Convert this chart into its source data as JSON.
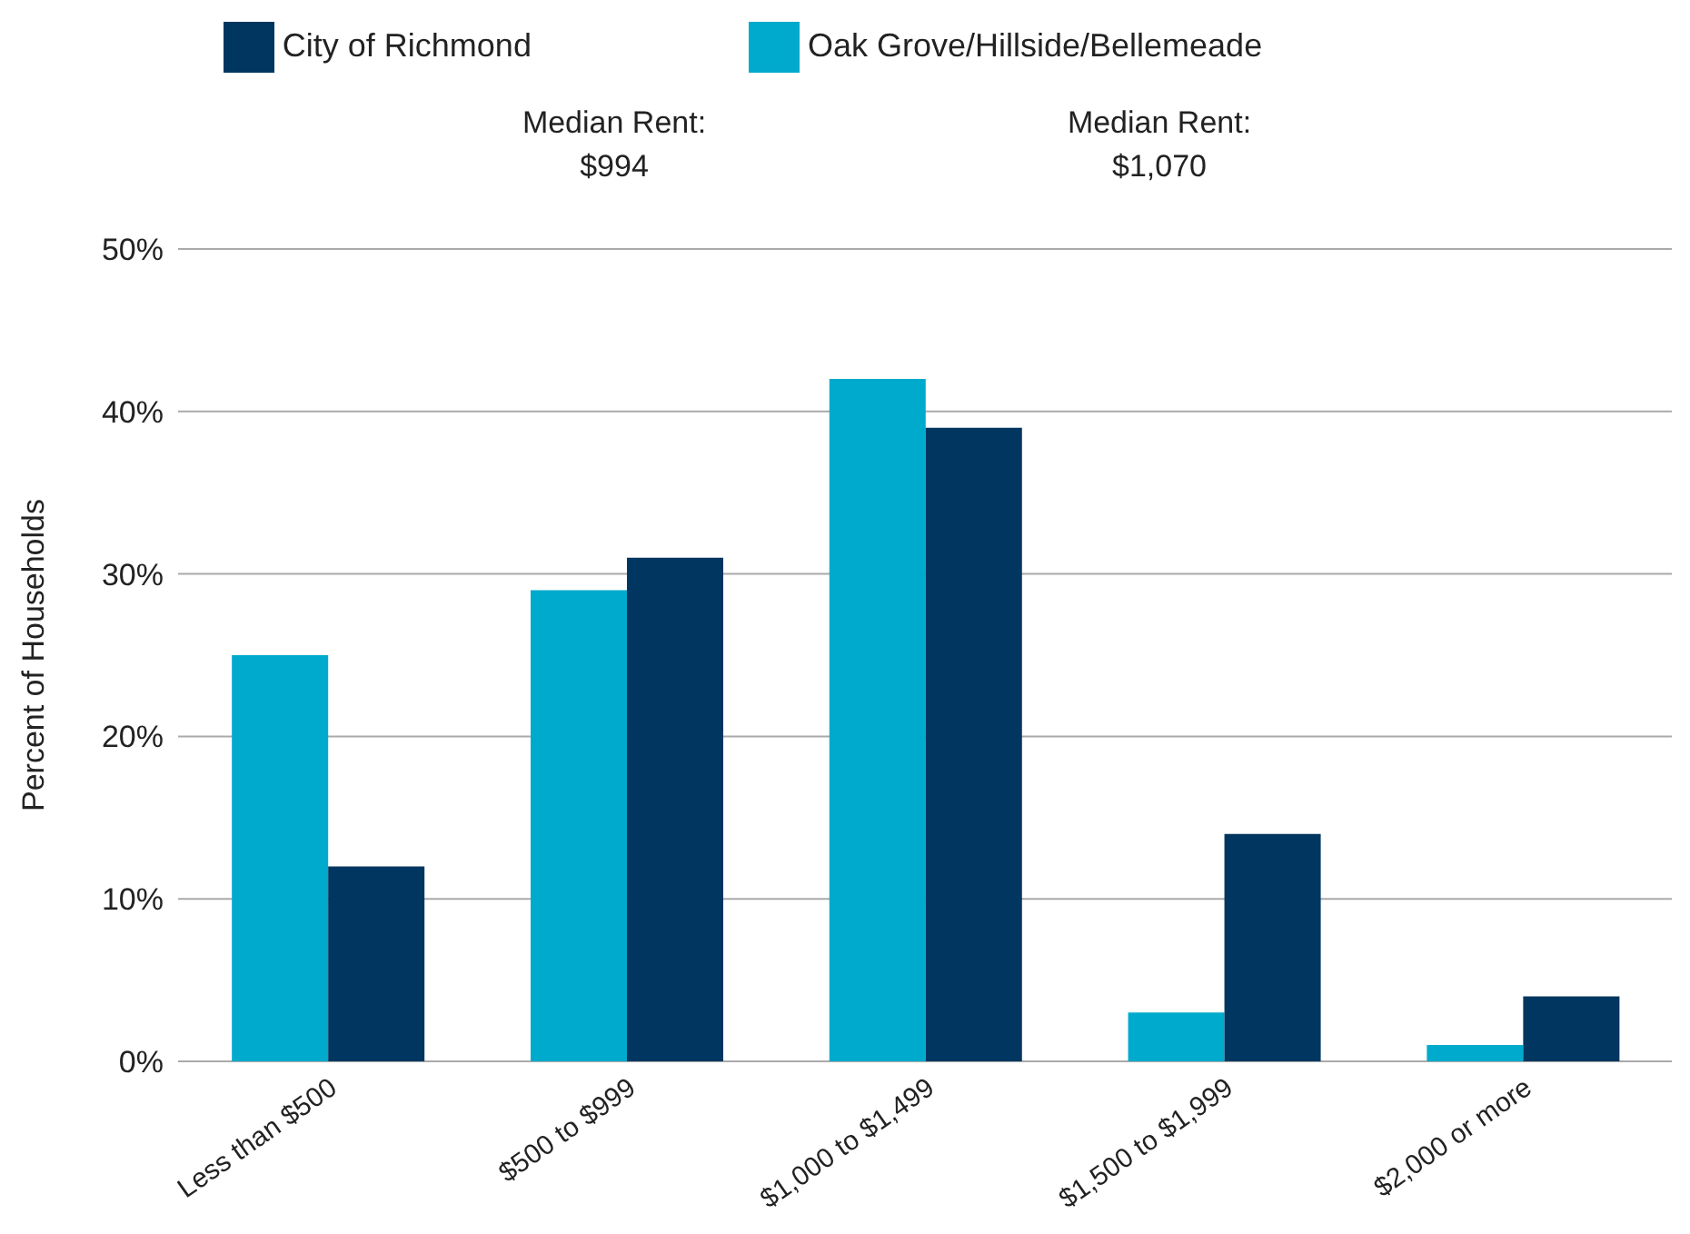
{
  "chart_data": {
    "type": "bar",
    "ylabel": "Percent of Households",
    "categories": [
      "Less than $500",
      "$500 to $999",
      "$1,000 to $1,499",
      "$1,500 to $1,999",
      "$2,000 or more"
    ],
    "series": [
      {
        "name": "Oak Grove/Hillside/Bellemeade",
        "color": "#00aacc",
        "values": [
          25,
          29,
          42,
          3,
          1
        ]
      },
      {
        "name": "City of Richmond",
        "color": "#003660",
        "values": [
          12,
          31,
          39,
          14,
          4
        ]
      }
    ],
    "ylim": [
      0,
      50
    ],
    "yticks": [
      {
        "value": 0,
        "label": "0%"
      },
      {
        "value": 10,
        "label": "10%"
      },
      {
        "value": 20,
        "label": "20%"
      },
      {
        "value": 30,
        "label": "30%"
      },
      {
        "value": 40,
        "label": "40%"
      },
      {
        "value": 50,
        "label": "50%"
      }
    ],
    "grid": "y",
    "legend": "top",
    "annotations": [
      "Median Rent:\n$994",
      "Median Rent:\n$1,070"
    ]
  }
}
